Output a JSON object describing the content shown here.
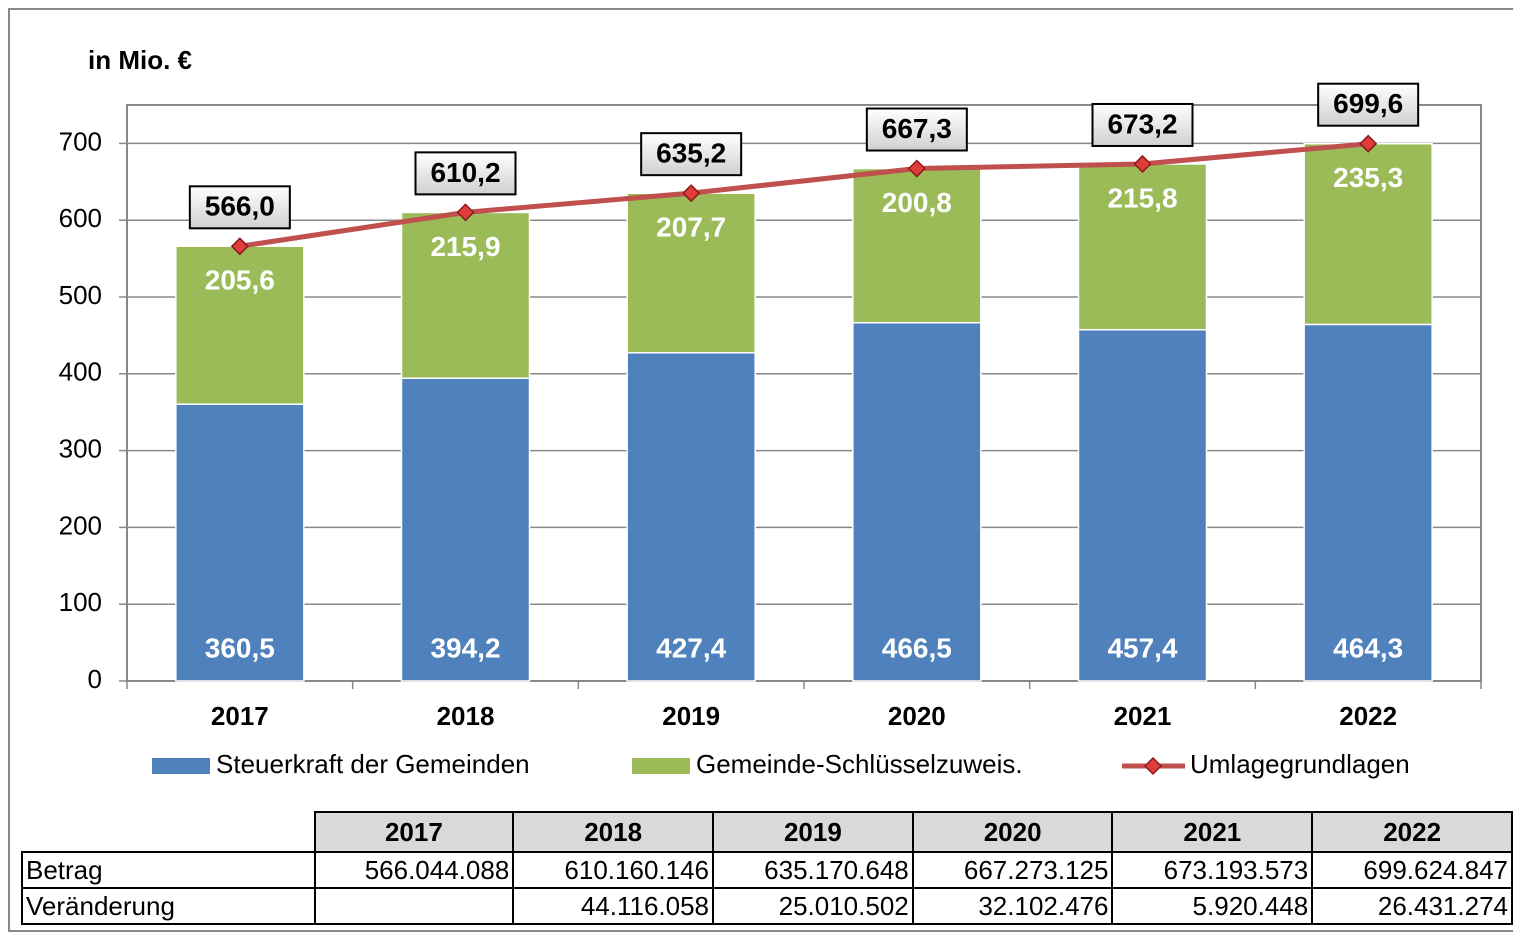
{
  "chart_data": {
    "type": "bar",
    "stacked": true,
    "unit_label": "in Mio. €",
    "categories": [
      "2017",
      "2018",
      "2019",
      "2020",
      "2021",
      "2022"
    ],
    "series": [
      {
        "name": "Steuerkraft der Gemeinden",
        "color": "#4f81bd",
        "values": [
          360.5,
          394.2,
          427.4,
          466.5,
          457.4,
          464.3
        ],
        "value_labels": [
          "360,5",
          "394,2",
          "427,4",
          "466,5",
          "457,4",
          "464,3"
        ]
      },
      {
        "name": "Gemeinde-Schlüsselzuweis.",
        "color": "#9bbb59",
        "values": [
          205.6,
          215.9,
          207.7,
          200.8,
          215.8,
          235.3
        ],
        "value_labels": [
          "205,6",
          "215,9",
          "207,7",
          "200,8",
          "215,8",
          "235,3"
        ]
      },
      {
        "name": "Umlagegrundlagen",
        "type": "line",
        "color": "#c0504d",
        "values": [
          566.0,
          610.2,
          635.2,
          667.3,
          673.2,
          699.6
        ],
        "value_labels": [
          "566,0",
          "610,2",
          "635,2",
          "667,3",
          "673,2",
          "699,6"
        ]
      }
    ],
    "ylim": [
      0,
      750
    ],
    "yticks": [
      0,
      100,
      200,
      300,
      400,
      500,
      600,
      700
    ],
    "grid": true
  },
  "table": {
    "columns": [
      "2017",
      "2018",
      "2019",
      "2020",
      "2021",
      "2022"
    ],
    "rows": [
      {
        "label": "Betrag",
        "cells": [
          "566.044.088",
          "610.160.146",
          "635.170.648",
          "667.273.125",
          "673.193.573",
          "699.624.847"
        ]
      },
      {
        "label": "Veränderung",
        "cells": [
          null,
          "44.116.058",
          "25.010.502",
          "32.102.476",
          "5.920.448",
          "26.431.274"
        ]
      }
    ]
  }
}
